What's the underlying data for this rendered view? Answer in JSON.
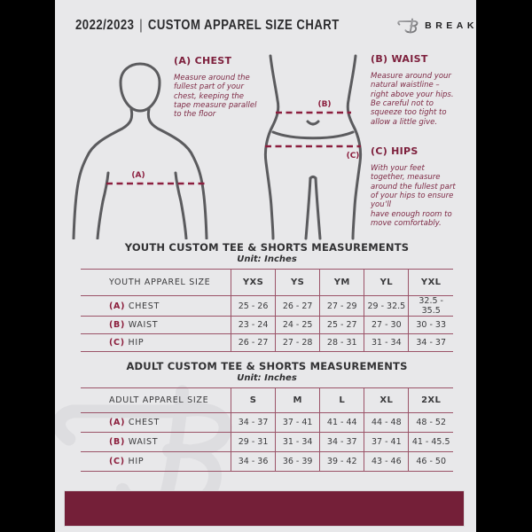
{
  "header": {
    "year": "2022/2023",
    "divider": "|",
    "title": "CUSTOM APPAREL SIZE CHART",
    "brand": "BREAKAWAY",
    "logo_icon": "breakaway-b-logo"
  },
  "diagram": {
    "chest_label": "(A)",
    "waist_label": "(B)",
    "hips_label": "(C)"
  },
  "instructions": [
    {
      "heading": "(A) CHEST",
      "body": "Measure around the\nfullest part of your\nchest, keeping the\ntape measure parallel\nto the floor"
    },
    {
      "heading": "(B) WAIST",
      "body": "Measure around your\nnatural waistline –\nright above your hips.\nBe careful not to\nsqueeze too tight to\nallow a little give."
    },
    {
      "heading": "(C) HIPS",
      "body": "With your feet\ntogether, measure\naround the fullest part\nof your hips to ensure\nyou’ll\nhave enough room to\nmove comfortably."
    }
  ],
  "youth_table": {
    "title": "YOUTH CUSTOM TEE & SHORTS MEASUREMENTS",
    "unit": "Unit: Inches",
    "size_header": "YOUTH APPAREL SIZE",
    "sizes": [
      "YXS",
      "YS",
      "YM",
      "YL",
      "YXL"
    ],
    "rows": [
      {
        "prefix": "(A)",
        "label": "CHEST",
        "values": [
          "25 - 26",
          "26 - 27",
          "27 - 29",
          "29 - 32.5",
          "32.5 - 35.5"
        ]
      },
      {
        "prefix": "(B)",
        "label": "WAIST",
        "values": [
          "23 - 24",
          "24 - 25",
          "25 - 27",
          "27 - 30",
          "30 - 33"
        ]
      },
      {
        "prefix": "(C)",
        "label": "HIP",
        "values": [
          "26 - 27",
          "27 - 28",
          "28 - 31",
          "31 - 34",
          "34 - 37"
        ]
      }
    ]
  },
  "adult_table": {
    "title": "ADULT CUSTOM TEE & SHORTS MEASUREMENTS",
    "unit": "Unit: Inches",
    "size_header": "ADULT APPAREL SIZE",
    "sizes": [
      "S",
      "M",
      "L",
      "XL",
      "2XL"
    ],
    "rows": [
      {
        "prefix": "(A)",
        "label": "CHEST",
        "values": [
          "34 - 37",
          "37 - 41",
          "41 - 44",
          "44 - 48",
          "48 - 52"
        ]
      },
      {
        "prefix": "(B)",
        "label": "WAIST",
        "values": [
          "29 - 31",
          "31 - 34",
          "34 - 37",
          "37 - 41",
          "41 - 45.5"
        ]
      },
      {
        "prefix": "(C)",
        "label": "HIP",
        "values": [
          "34 - 36",
          "36 - 39",
          "39 - 42",
          "43 - 46",
          "46 - 50"
        ]
      }
    ]
  },
  "colors": {
    "page_background": "#e8e8ea",
    "letterbox": "#000000",
    "maroon_heading": "#7d1f3c",
    "maroon_dash": "#8c1f3f",
    "table_line": "#9b5368",
    "footer_bar": "#741f38",
    "figure_stroke": "#5b5b5e",
    "text_dark": "#3a3a3c"
  }
}
